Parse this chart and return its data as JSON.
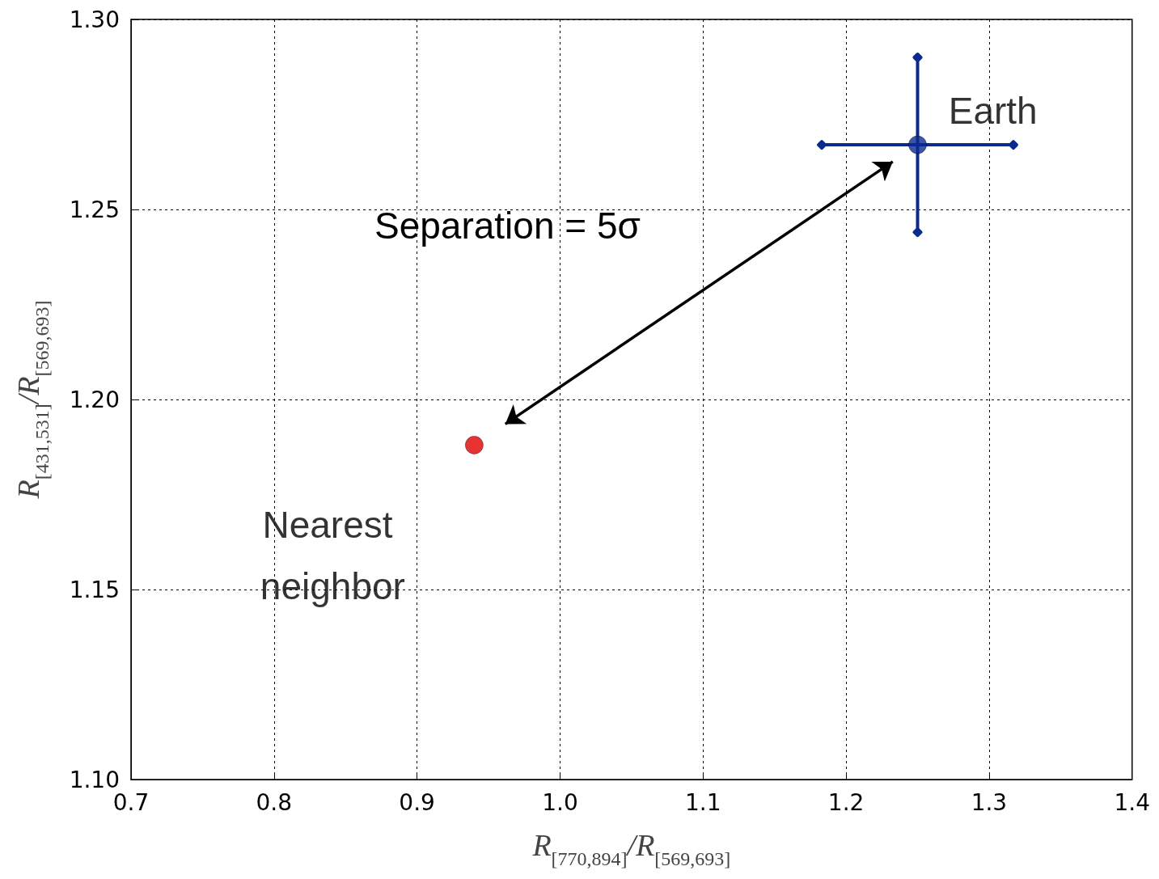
{
  "chart_data": {
    "type": "scatter",
    "xlabel": "R$_{[770,894]}$/R$_{[569,693]}$",
    "ylabel": "R$_{[431,531]}$/R$_{[569,693]}$",
    "annotations": [
      "Separation = 5σ"
    ],
    "series": [
      {
        "name": "Earth",
        "color": "#0b2a8f",
        "x": [
          1.25
        ],
        "values": [
          1.267
        ],
        "errors": [
          0.023
        ],
        "xerrors": [
          0.067
        ]
      },
      {
        "name": "Nearest neighbor",
        "color": "#e00000",
        "x": [
          0.94
        ],
        "values": [
          1.188
        ]
      }
    ],
    "xlim": [
      0.7,
      1.4
    ],
    "xticks": [
      0.7,
      0.8,
      0.9,
      {
        "value": 1,
        "label": "1.0"
      },
      1.1,
      1.2,
      1.3,
      1.4
    ],
    "ylim": [
      1.1,
      1.3
    ],
    "yticks": [
      {
        "value": 1.1,
        "label": "1.10"
      },
      1.15,
      {
        "value": 1.2,
        "label": "1.20"
      },
      1.25,
      {
        "value": 1.3,
        "label": "1.30"
      }
    ],
    "grid": true,
    "marker": "circle",
    "legend": false
  }
}
